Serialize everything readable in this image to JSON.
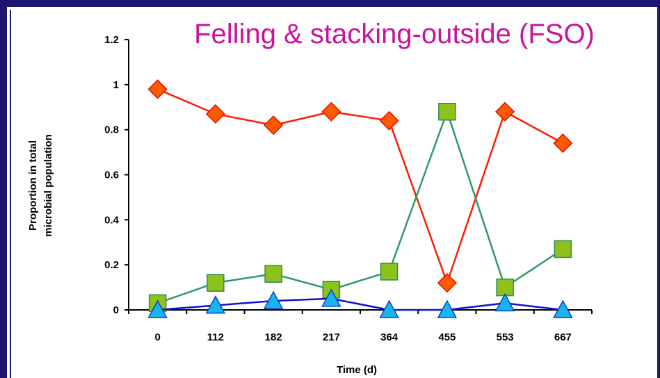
{
  "chart_data": {
    "type": "line",
    "title": "Felling & stacking-outside (FSO)",
    "xlabel": "Time (d)",
    "ylabel_lines": [
      "Proportion in total",
      "microbial population"
    ],
    "categories": [
      "0",
      "112",
      "182",
      "217",
      "364",
      "455",
      "553",
      "667"
    ],
    "ylim": [
      0,
      1.2
    ],
    "yticks": [
      "0",
      "0.2",
      "0.4",
      "0.6",
      "0.8",
      "1",
      "1.2"
    ],
    "grid": false,
    "series": [
      {
        "values": [
          0.98,
          0.87,
          0.82,
          0.88,
          0.84,
          0.12,
          0.88,
          0.74
        ],
        "line_color": "#ff1a00",
        "marker": "diamond",
        "marker_fill": "#ff5a00",
        "marker_stroke": "#e01000"
      },
      {
        "values": [
          0.03,
          0.12,
          0.16,
          0.09,
          0.17,
          0.88,
          0.1,
          0.27
        ],
        "line_color": "#2e9968",
        "marker": "square",
        "marker_fill": "#8cc21a",
        "marker_stroke": "#2e8a5a"
      },
      {
        "values": [
          0.0,
          0.02,
          0.04,
          0.05,
          0.0,
          0.0,
          0.03,
          0.0
        ],
        "line_color": "#1010d0",
        "marker": "triangle",
        "marker_fill": "#18b4f0",
        "marker_stroke": "#1040c0"
      }
    ]
  },
  "colors": {
    "frame": "#1d1470",
    "title": "#c8149a"
  }
}
